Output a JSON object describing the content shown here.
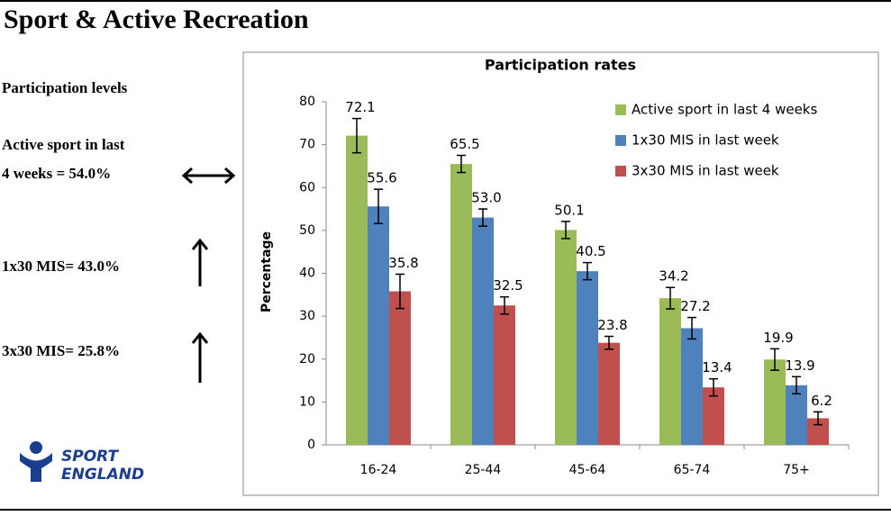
{
  "header": {
    "title": "Sport & Active Recreation"
  },
  "sidebar": {
    "heading": "Participation levels",
    "items": [
      [
        "Active sport in last",
        "4 weeks = 54.0%"
      ],
      [
        "1x30 MIS= 43.0%"
      ],
      [
        "3x30 MIS= 25.8%"
      ]
    ]
  },
  "logo": {
    "lines": [
      "SPORT",
      "ENGLAND"
    ]
  },
  "chart_data": {
    "type": "bar",
    "title": "Participation rates",
    "y_label": "Percentage",
    "categories": [
      "16-24",
      "25-44",
      "45-64",
      "65-74",
      "75+"
    ],
    "series": [
      {
        "name": "Active sport in last 4 weeks",
        "color": "#9bbb59",
        "values": [
          72.1,
          65.5,
          50.1,
          34.2,
          19.9
        ],
        "errors": [
          4,
          2,
          2,
          2.5,
          2.5
        ]
      },
      {
        "name": "1x30 MIS in last week",
        "color": "#4f81bd",
        "values": [
          55.6,
          53.0,
          40.5,
          27.2,
          13.9
        ],
        "value_labels": [
          "55.6",
          "53.0",
          "40.5",
          "27.2",
          "13.9"
        ],
        "errors": [
          4,
          2,
          2,
          2.5,
          2
        ]
      },
      {
        "name": "3x30 MIS in last week",
        "color": "#c0504d",
        "values": [
          35.8,
          32.5,
          23.8,
          13.4,
          6.2
        ],
        "errors": [
          4,
          2,
          1.5,
          2,
          1.5
        ]
      }
    ],
    "ylim": [
      0,
      80
    ],
    "yticks": [
      0,
      10,
      20,
      30,
      40,
      50,
      60,
      70,
      80
    ],
    "grid": false,
    "legend": "top-right"
  }
}
